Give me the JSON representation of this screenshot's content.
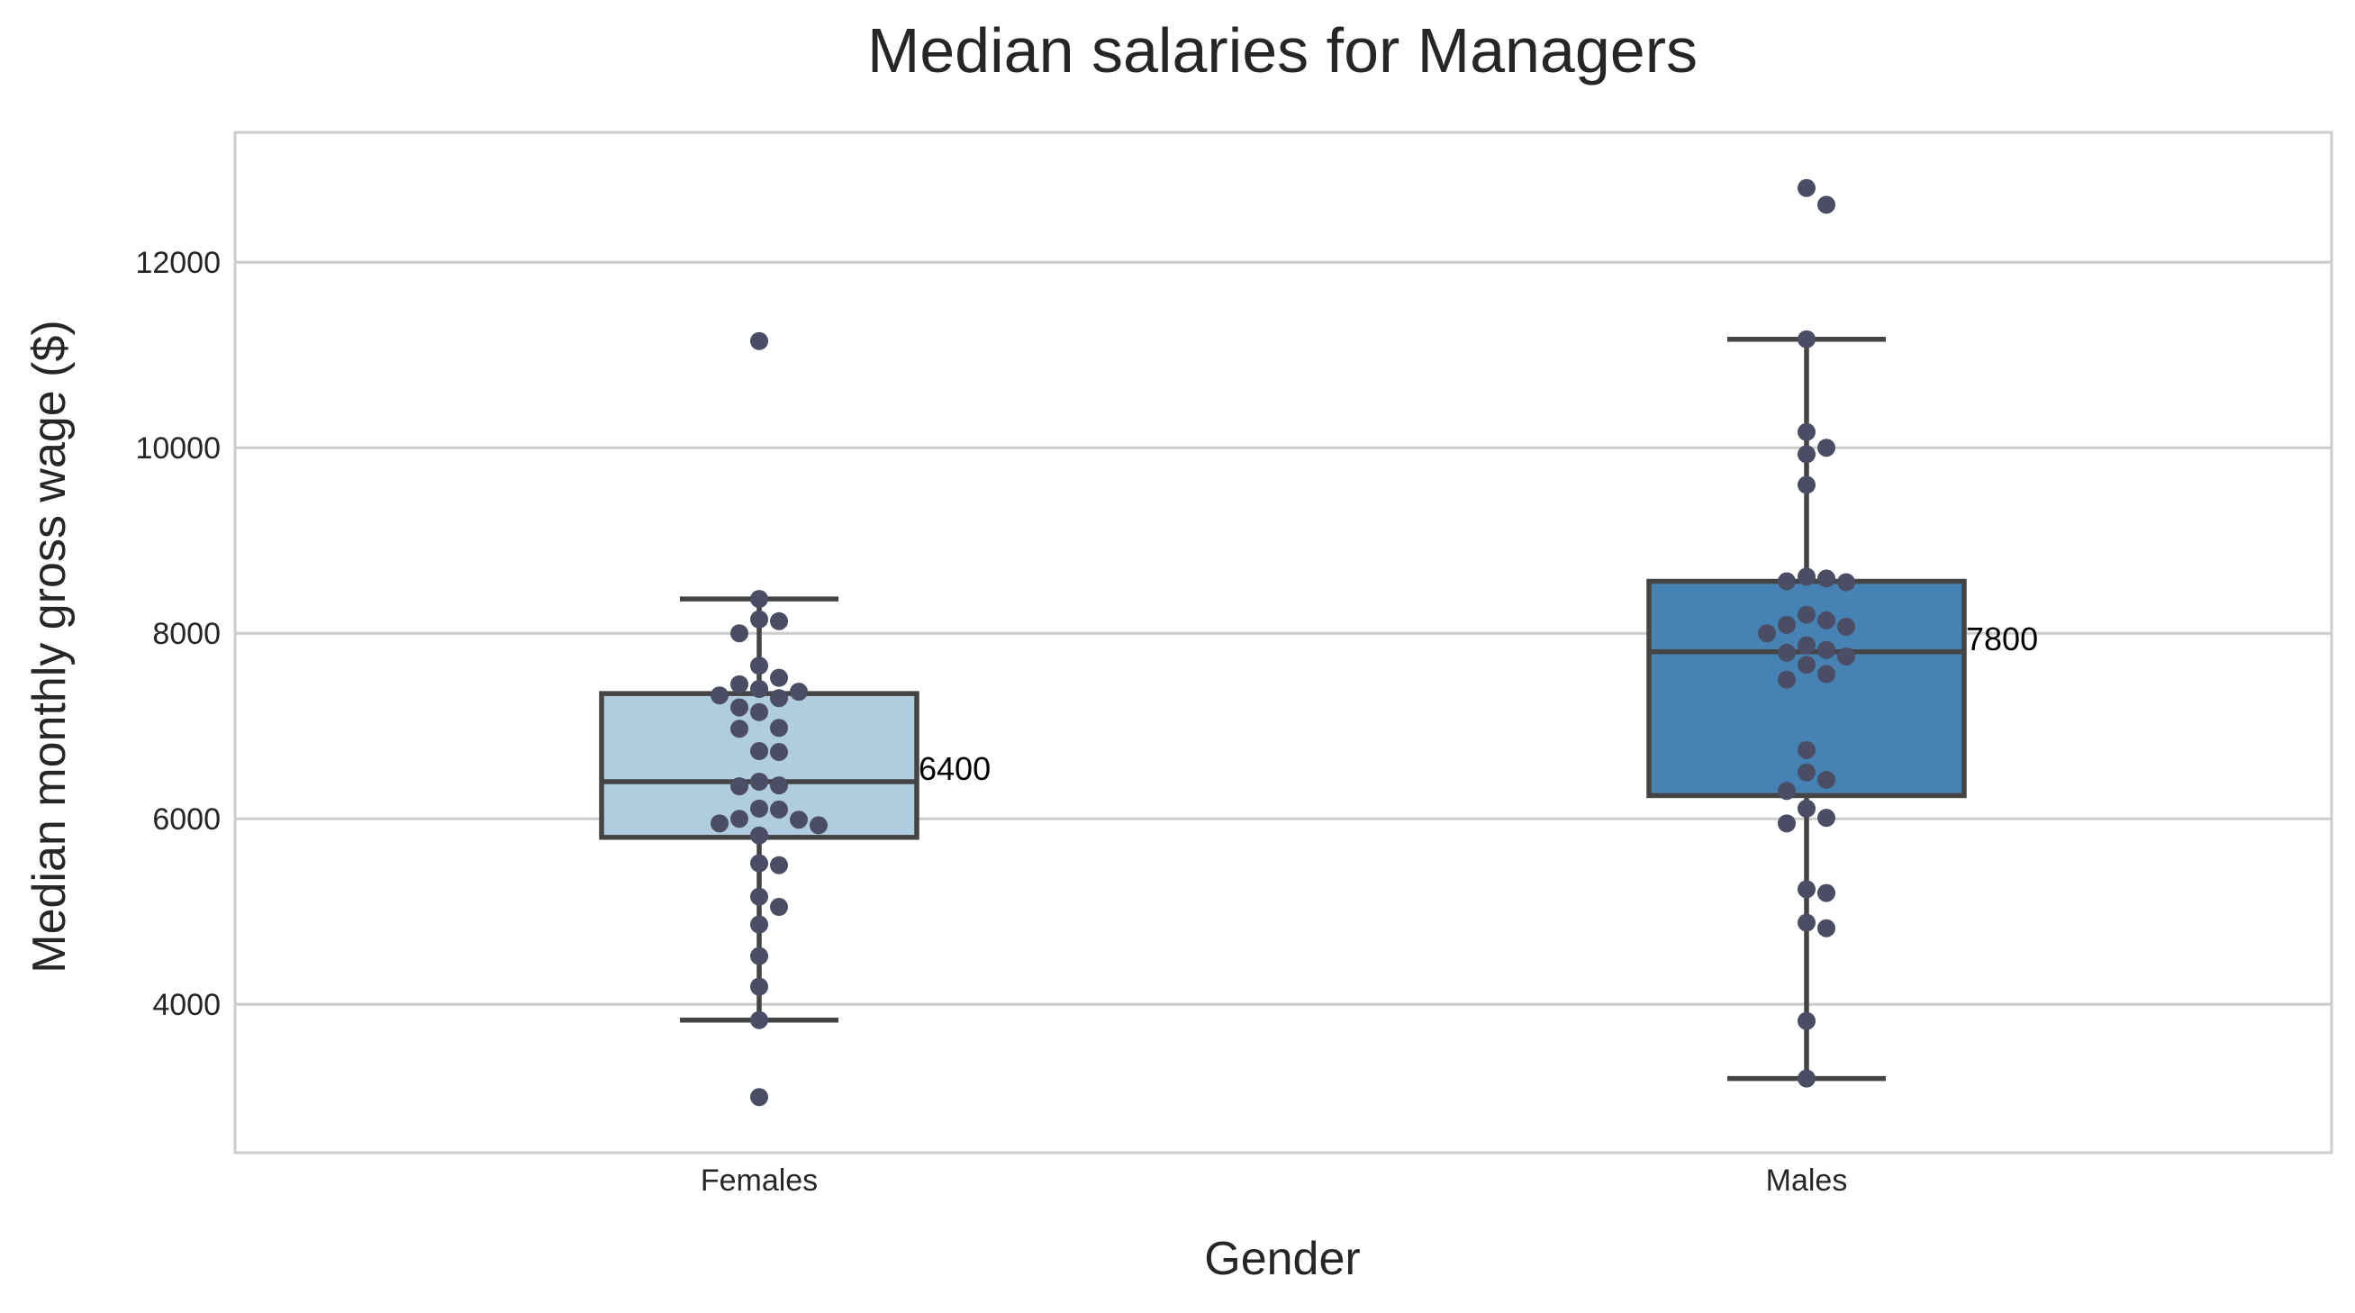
{
  "chart_data": {
    "type": "box",
    "title": "Median salaries for Managers",
    "xlabel": "Gender",
    "ylabel": "Median monthly gross wage ($)",
    "ylim": [
      2400,
      13400
    ],
    "yticks": [
      4000,
      6000,
      8000,
      10000,
      12000
    ],
    "grid": "horizontal",
    "categories": [
      "Females",
      "Males"
    ],
    "boxes": [
      {
        "category": "Females",
        "color": "#b0cde0",
        "whisker_low": 3830,
        "q1": 5800,
        "median": 6400,
        "q3": 7350,
        "whisker_high": 8370,
        "median_label": "6400",
        "points": [
          11150,
          8370,
          8150,
          8130,
          8000,
          7650,
          7520,
          7450,
          7400,
          7370,
          7330,
          7300,
          7200,
          7150,
          6980,
          6970,
          6730,
          6720,
          6400,
          6360,
          6350,
          6110,
          6100,
          6000,
          5990,
          5950,
          5930,
          5820,
          5520,
          5500,
          5160,
          5050,
          4860,
          4520,
          4190,
          3830,
          3000
        ]
      },
      {
        "category": "Males",
        "color": "#4682b4",
        "whisker_low": 3200,
        "q1": 6250,
        "median": 7800,
        "q3": 8560,
        "whisker_high": 11170,
        "median_label": "7800",
        "points": [
          12800,
          12620,
          11170,
          10170,
          10000,
          9930,
          9600,
          8610,
          8590,
          8560,
          8550,
          8200,
          8140,
          8090,
          8070,
          8000,
          7870,
          7820,
          7790,
          7750,
          7660,
          7560,
          7500,
          6740,
          6500,
          6420,
          6300,
          6110,
          6010,
          5950,
          5240,
          5200,
          4880,
          4820,
          3820,
          3200
        ]
      }
    ]
  }
}
